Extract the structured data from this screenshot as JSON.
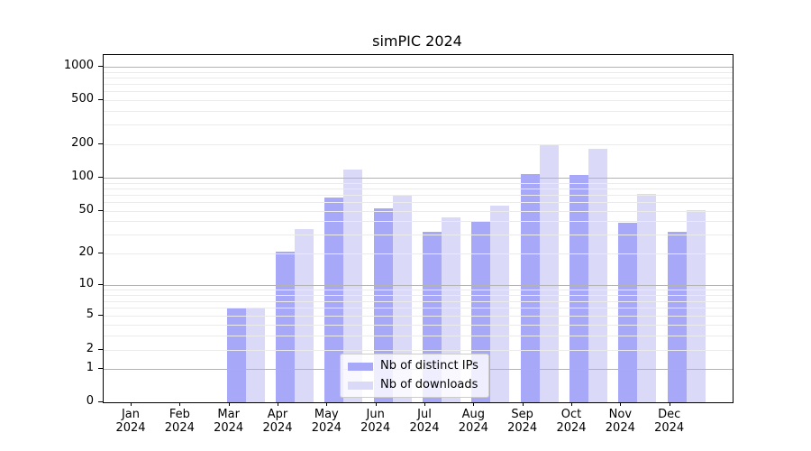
{
  "chart_data": {
    "type": "bar",
    "title": "simPIC 2024",
    "categories": [
      "Jan",
      "Feb",
      "Mar",
      "Apr",
      "May",
      "Jun",
      "Jul",
      "Aug",
      "Sep",
      "Oct",
      "Nov",
      "Dec"
    ],
    "category_sublabel": "2024",
    "series": [
      {
        "name": "Nb of distinct IPs",
        "color": "#a8a8f8",
        "values": [
          0,
          0,
          6,
          21,
          66,
          53,
          32,
          40,
          108,
          105,
          39,
          32
        ]
      },
      {
        "name": "Nb of downloads",
        "color": "#dadaf8",
        "values": [
          0,
          0,
          6,
          34,
          118,
          69,
          44,
          56,
          195,
          183,
          71,
          51
        ]
      }
    ],
    "yticks": [
      0,
      1,
      2,
      5,
      10,
      20,
      50,
      100,
      200,
      500,
      1000
    ],
    "yscale": "asinh",
    "ylim": [
      0,
      1900
    ],
    "xlabel": "",
    "ylabel": "",
    "grid": true,
    "grid_major_color": "#b3b3b3",
    "grid_minor_color": "#ebebeb",
    "legend_position": "lower center"
  }
}
